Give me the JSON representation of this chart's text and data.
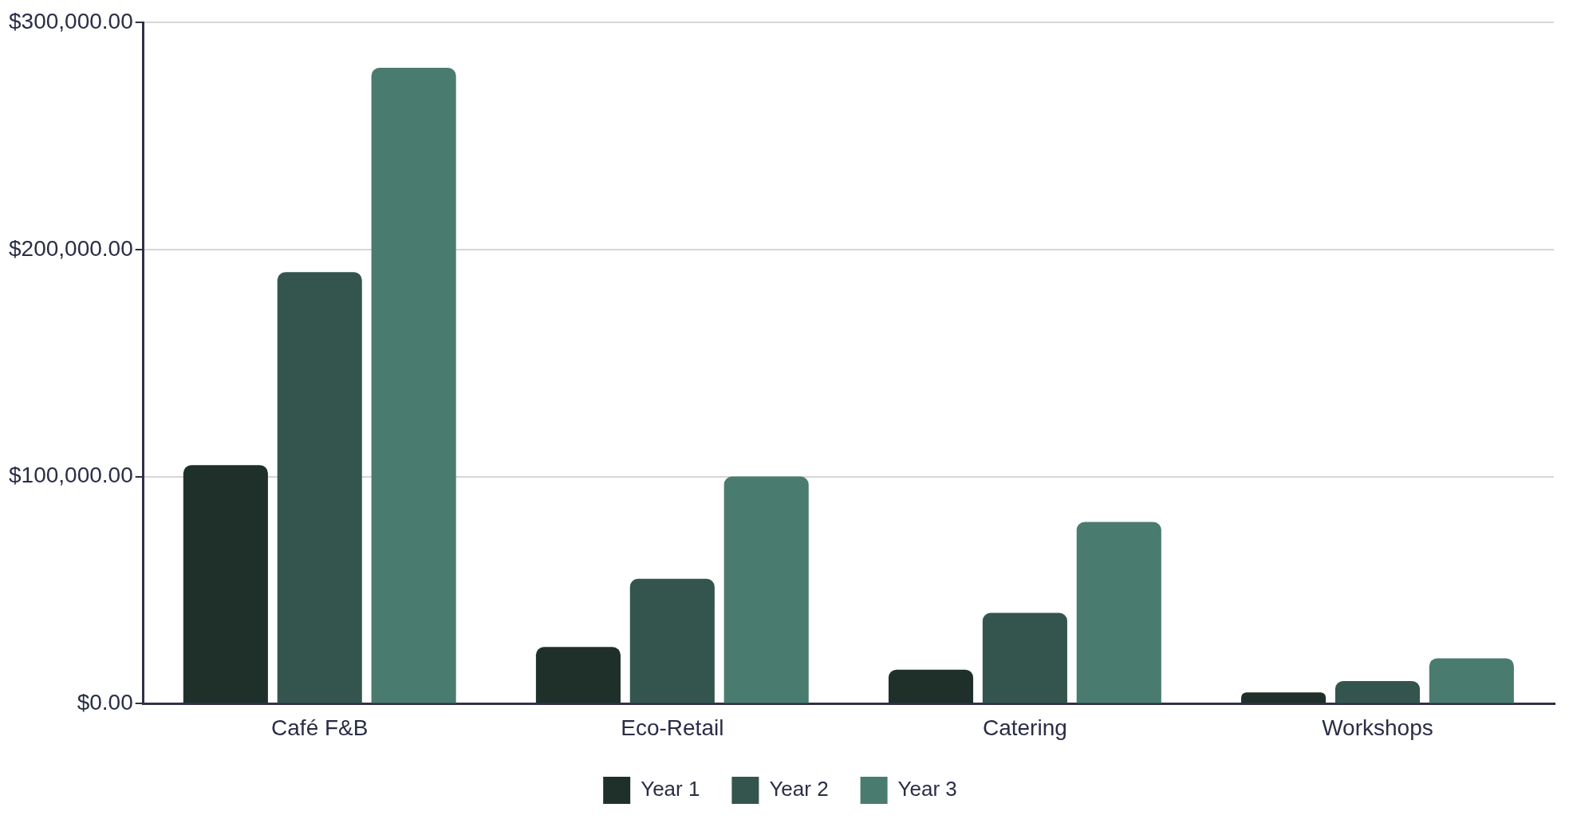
{
  "chart_data": {
    "type": "bar",
    "categories": [
      "Café F&B",
      "Eco-Retail",
      "Catering",
      "Workshops"
    ],
    "series": [
      {
        "name": "Year 1",
        "color": "#1f302b",
        "values": [
          105000,
          25000,
          15000,
          5000
        ]
      },
      {
        "name": "Year 2",
        "color": "#34554d",
        "values": [
          190000,
          55000,
          40000,
          10000
        ]
      },
      {
        "name": "Year 3",
        "color": "#4a7b6f",
        "values": [
          280000,
          100000,
          80000,
          20000
        ]
      }
    ],
    "ylim": [
      0,
      300000
    ],
    "yticks": [
      {
        "value": 0,
        "label": "$0.00"
      },
      {
        "value": 100000,
        "label": "$100,000.00"
      },
      {
        "value": 200000,
        "label": "$200,000.00"
      },
      {
        "value": 300000,
        "label": "$300,000.00"
      }
    ],
    "grid": "y",
    "legend": "bottom"
  }
}
